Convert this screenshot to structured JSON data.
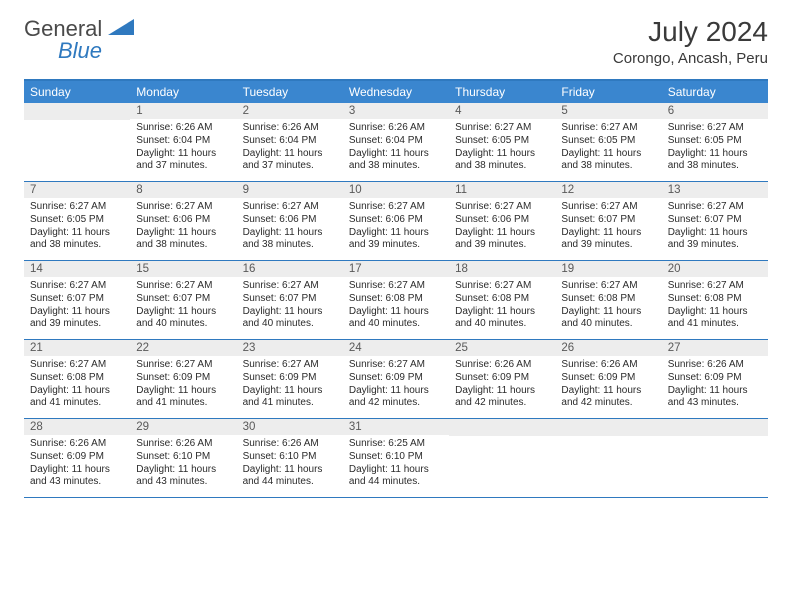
{
  "logo": {
    "text1": "General",
    "text2": "Blue"
  },
  "header": {
    "title": "July 2024",
    "location": "Corongo, Ancash, Peru"
  },
  "colors": {
    "header_bar": "#3a86cf",
    "rule": "#2f79bf",
    "daynum_bg": "#ededed",
    "text": "#2b2b2b",
    "logo_blue": "#2f79bf"
  },
  "day_names": [
    "Sunday",
    "Monday",
    "Tuesday",
    "Wednesday",
    "Thursday",
    "Friday",
    "Saturday"
  ],
  "weeks": [
    [
      {
        "n": "",
        "sr": "",
        "ss": "",
        "dl": ""
      },
      {
        "n": "1",
        "sr": "6:26 AM",
        "ss": "6:04 PM",
        "dl": "11 hours and 37 minutes."
      },
      {
        "n": "2",
        "sr": "6:26 AM",
        "ss": "6:04 PM",
        "dl": "11 hours and 37 minutes."
      },
      {
        "n": "3",
        "sr": "6:26 AM",
        "ss": "6:04 PM",
        "dl": "11 hours and 38 minutes."
      },
      {
        "n": "4",
        "sr": "6:27 AM",
        "ss": "6:05 PM",
        "dl": "11 hours and 38 minutes."
      },
      {
        "n": "5",
        "sr": "6:27 AM",
        "ss": "6:05 PM",
        "dl": "11 hours and 38 minutes."
      },
      {
        "n": "6",
        "sr": "6:27 AM",
        "ss": "6:05 PM",
        "dl": "11 hours and 38 minutes."
      }
    ],
    [
      {
        "n": "7",
        "sr": "6:27 AM",
        "ss": "6:05 PM",
        "dl": "11 hours and 38 minutes."
      },
      {
        "n": "8",
        "sr": "6:27 AM",
        "ss": "6:06 PM",
        "dl": "11 hours and 38 minutes."
      },
      {
        "n": "9",
        "sr": "6:27 AM",
        "ss": "6:06 PM",
        "dl": "11 hours and 38 minutes."
      },
      {
        "n": "10",
        "sr": "6:27 AM",
        "ss": "6:06 PM",
        "dl": "11 hours and 39 minutes."
      },
      {
        "n": "11",
        "sr": "6:27 AM",
        "ss": "6:06 PM",
        "dl": "11 hours and 39 minutes."
      },
      {
        "n": "12",
        "sr": "6:27 AM",
        "ss": "6:07 PM",
        "dl": "11 hours and 39 minutes."
      },
      {
        "n": "13",
        "sr": "6:27 AM",
        "ss": "6:07 PM",
        "dl": "11 hours and 39 minutes."
      }
    ],
    [
      {
        "n": "14",
        "sr": "6:27 AM",
        "ss": "6:07 PM",
        "dl": "11 hours and 39 minutes."
      },
      {
        "n": "15",
        "sr": "6:27 AM",
        "ss": "6:07 PM",
        "dl": "11 hours and 40 minutes."
      },
      {
        "n": "16",
        "sr": "6:27 AM",
        "ss": "6:07 PM",
        "dl": "11 hours and 40 minutes."
      },
      {
        "n": "17",
        "sr": "6:27 AM",
        "ss": "6:08 PM",
        "dl": "11 hours and 40 minutes."
      },
      {
        "n": "18",
        "sr": "6:27 AM",
        "ss": "6:08 PM",
        "dl": "11 hours and 40 minutes."
      },
      {
        "n": "19",
        "sr": "6:27 AM",
        "ss": "6:08 PM",
        "dl": "11 hours and 40 minutes."
      },
      {
        "n": "20",
        "sr": "6:27 AM",
        "ss": "6:08 PM",
        "dl": "11 hours and 41 minutes."
      }
    ],
    [
      {
        "n": "21",
        "sr": "6:27 AM",
        "ss": "6:08 PM",
        "dl": "11 hours and 41 minutes."
      },
      {
        "n": "22",
        "sr": "6:27 AM",
        "ss": "6:09 PM",
        "dl": "11 hours and 41 minutes."
      },
      {
        "n": "23",
        "sr": "6:27 AM",
        "ss": "6:09 PM",
        "dl": "11 hours and 41 minutes."
      },
      {
        "n": "24",
        "sr": "6:27 AM",
        "ss": "6:09 PM",
        "dl": "11 hours and 42 minutes."
      },
      {
        "n": "25",
        "sr": "6:26 AM",
        "ss": "6:09 PM",
        "dl": "11 hours and 42 minutes."
      },
      {
        "n": "26",
        "sr": "6:26 AM",
        "ss": "6:09 PM",
        "dl": "11 hours and 42 minutes."
      },
      {
        "n": "27",
        "sr": "6:26 AM",
        "ss": "6:09 PM",
        "dl": "11 hours and 43 minutes."
      }
    ],
    [
      {
        "n": "28",
        "sr": "6:26 AM",
        "ss": "6:09 PM",
        "dl": "11 hours and 43 minutes."
      },
      {
        "n": "29",
        "sr": "6:26 AM",
        "ss": "6:10 PM",
        "dl": "11 hours and 43 minutes."
      },
      {
        "n": "30",
        "sr": "6:26 AM",
        "ss": "6:10 PM",
        "dl": "11 hours and 44 minutes."
      },
      {
        "n": "31",
        "sr": "6:25 AM",
        "ss": "6:10 PM",
        "dl": "11 hours and 44 minutes."
      },
      {
        "n": "",
        "sr": "",
        "ss": "",
        "dl": ""
      },
      {
        "n": "",
        "sr": "",
        "ss": "",
        "dl": ""
      },
      {
        "n": "",
        "sr": "",
        "ss": "",
        "dl": ""
      }
    ]
  ],
  "labels": {
    "sunrise": "Sunrise:",
    "sunset": "Sunset:",
    "daylight": "Daylight:"
  }
}
